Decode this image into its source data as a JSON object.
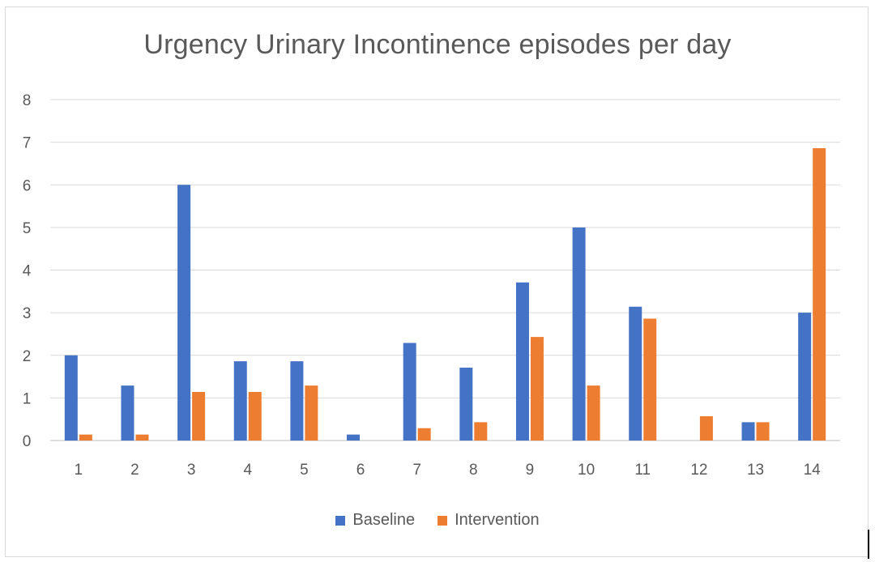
{
  "chart_data": {
    "type": "bar",
    "title": "Urgency Urinary Incontinence episodes per day",
    "xlabel": "",
    "ylabel": "",
    "categories": [
      "1",
      "2",
      "3",
      "4",
      "5",
      "6",
      "7",
      "8",
      "9",
      "10",
      "11",
      "12",
      "13",
      "14"
    ],
    "series": [
      {
        "name": "Baseline",
        "color": "#4472C4",
        "values": [
          2.0,
          1.29,
          6.0,
          1.86,
          1.86,
          0.14,
          2.29,
          1.71,
          3.71,
          5.0,
          3.14,
          0,
          0.43,
          3.0
        ]
      },
      {
        "name": "Intervention",
        "color": "#ED7D31",
        "values": [
          0.14,
          0.14,
          1.14,
          1.14,
          1.29,
          0,
          0.29,
          0.43,
          2.43,
          1.29,
          2.86,
          0.57,
          0.43,
          6.86
        ]
      }
    ],
    "yticks": [
      "0",
      "1",
      "2",
      "3",
      "4",
      "5",
      "6",
      "7",
      "8"
    ],
    "ylim": [
      0,
      8
    ],
    "grid": true,
    "legend_position": "bottom"
  }
}
